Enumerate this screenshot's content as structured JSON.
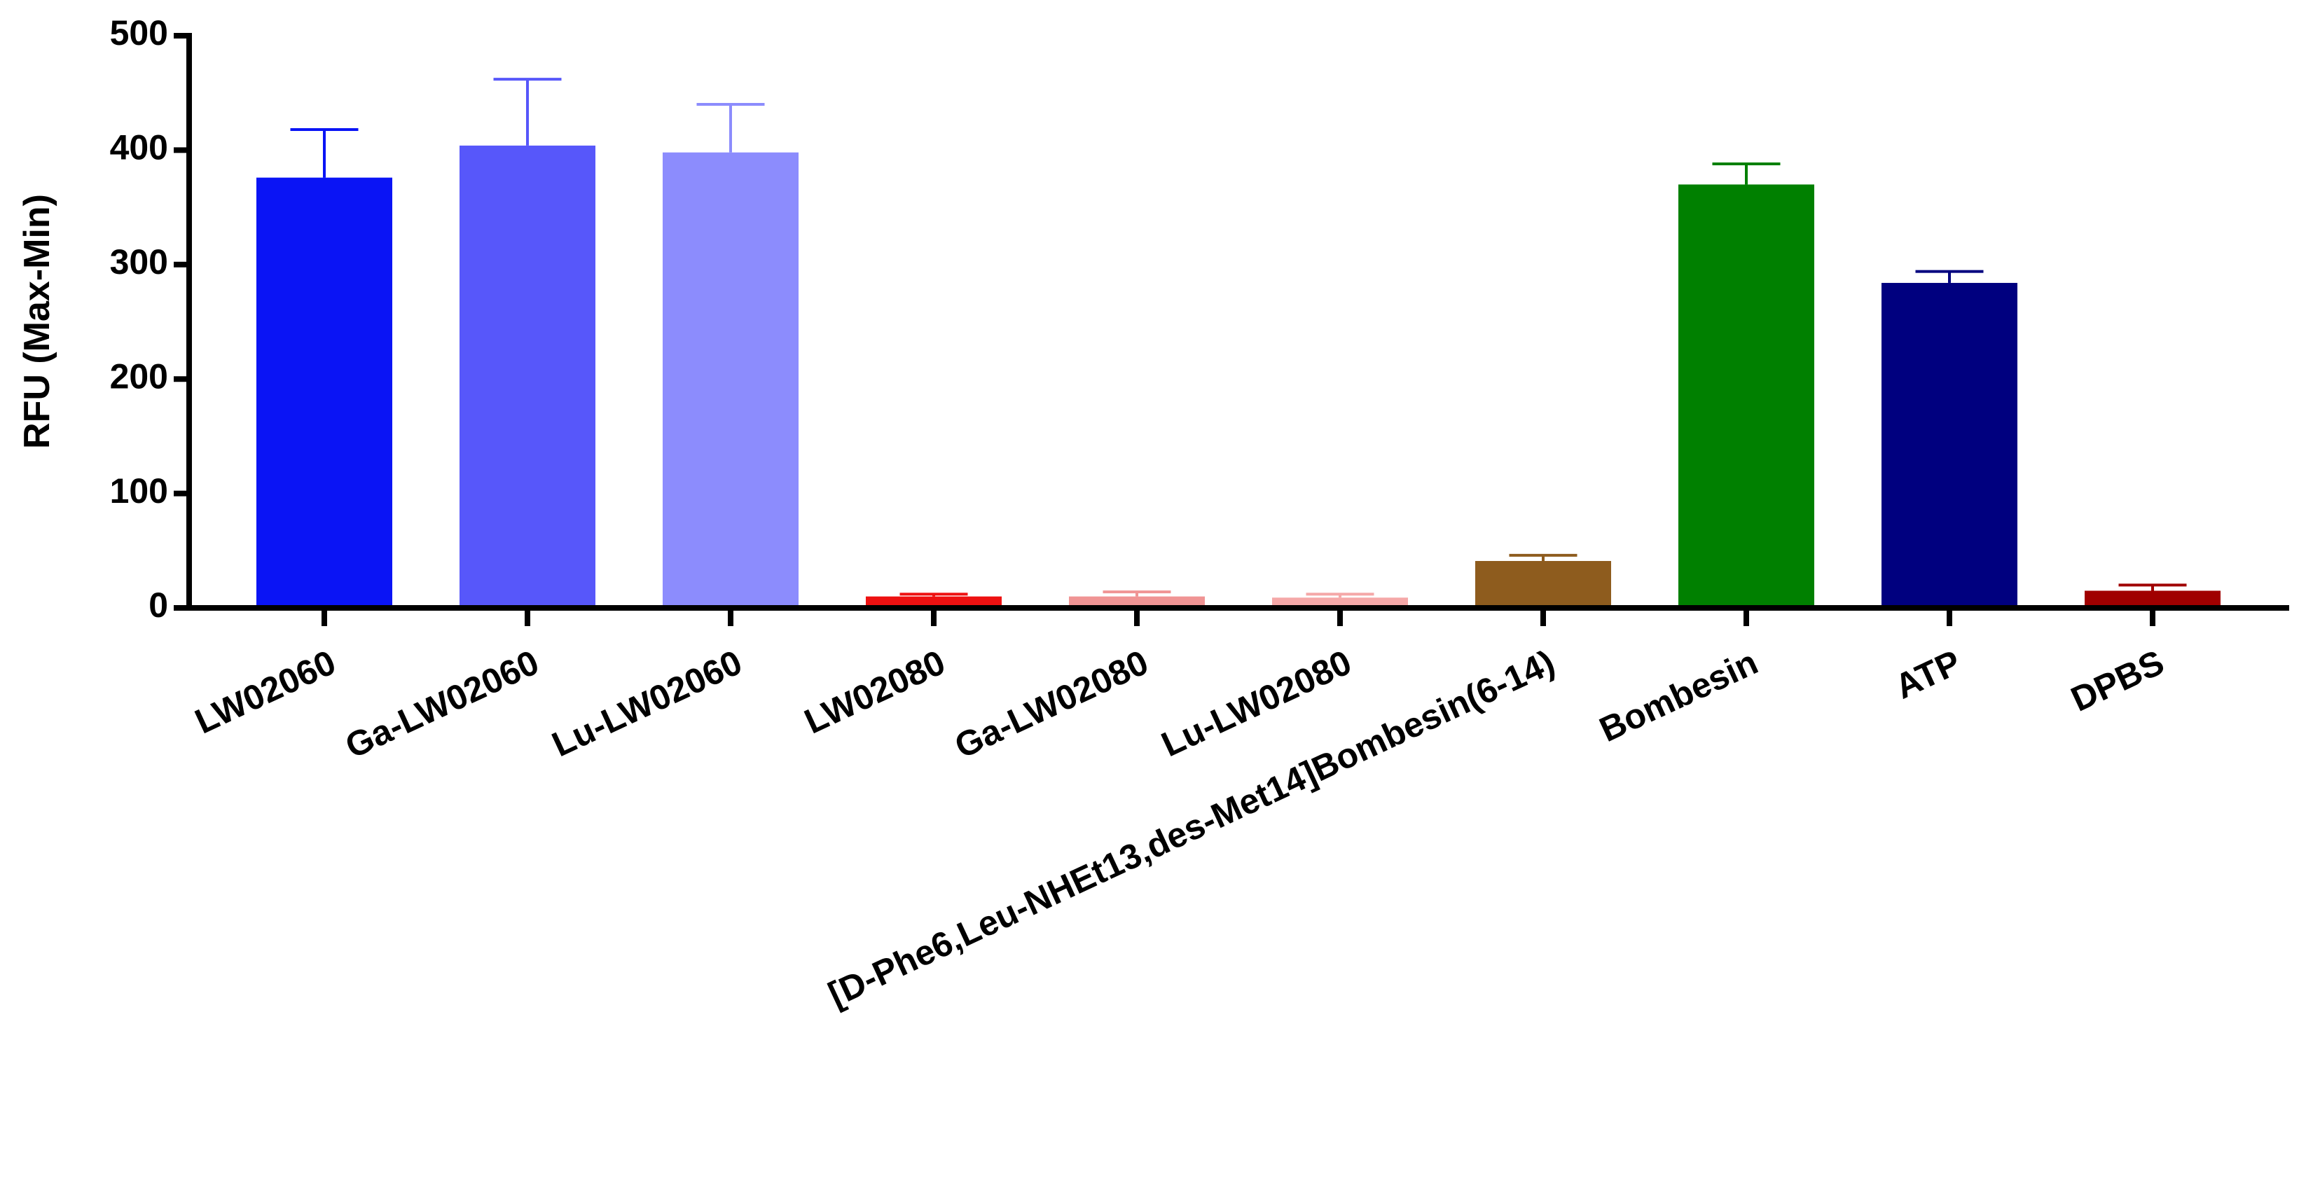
{
  "chart_data": {
    "type": "bar",
    "y_label": "RFU (Max-Min)",
    "categories": [
      "LW02060",
      "Ga-LW02060",
      "Lu-LW02060",
      "LW02080",
      "Ga-LW02080",
      "Lu-LW02080",
      "[D-Phe6,Leu-NHEt13,des-Met14]Bombesin(6-14)",
      "Bombesin",
      "ATP",
      "DPBS"
    ],
    "values": [
      376,
      404,
      398,
      10,
      10,
      9,
      41,
      370,
      284,
      15
    ],
    "errors": [
      42,
      58,
      42,
      2,
      4,
      3,
      5,
      18,
      10,
      5
    ],
    "colors": [
      "#0a14f5",
      "#5757fa",
      "#8c8cfd",
      "#ee1111",
      "#f09494",
      "#f5a8a8",
      "#8e5c1e",
      "#008000",
      "#00007f",
      "#a00000"
    ],
    "ylim": [
      0,
      500
    ],
    "yticks": [
      0,
      100,
      200,
      300,
      400,
      500
    ],
    "grid": false
  }
}
